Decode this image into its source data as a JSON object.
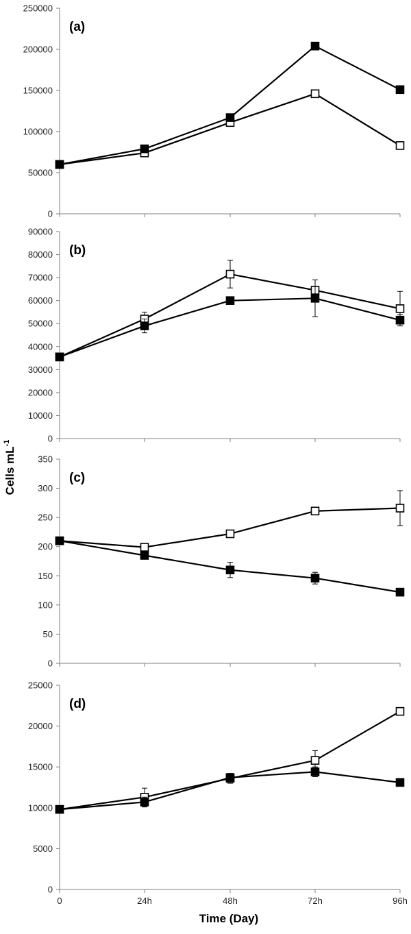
{
  "figure": {
    "ylabel_main": "Cells mL",
    "ylabel_sup": "-1",
    "xlabel": "Time (Day)",
    "x_ticks": [
      "0",
      "24h",
      "48h",
      "72h",
      "96h"
    ]
  },
  "chart_data": [
    {
      "type": "line",
      "panel_label": "(a)",
      "categories": [
        "0",
        "24h",
        "48h",
        "72h",
        "96h"
      ],
      "ylim": [
        0,
        250000
      ],
      "y_ticks": [
        "0",
        "50000",
        "100000",
        "150000",
        "200000",
        "250000"
      ],
      "series": [
        {
          "marker": "filled-square",
          "values": [
            60000,
            79000,
            117000,
            204000,
            151000
          ],
          "errors": [
            0,
            0,
            0,
            0,
            0
          ]
        },
        {
          "marker": "open-square",
          "values": [
            60000,
            74000,
            111000,
            146000,
            83000
          ],
          "errors": [
            0,
            0,
            0,
            0,
            0
          ]
        }
      ]
    },
    {
      "type": "line",
      "panel_label": "(b)",
      "categories": [
        "0",
        "24h",
        "48h",
        "72h",
        "96h"
      ],
      "ylim": [
        0,
        90000
      ],
      "y_ticks": [
        "0",
        "10000",
        "20000",
        "30000",
        "40000",
        "50000",
        "60000",
        "70000",
        "80000",
        "90000"
      ],
      "series": [
        {
          "marker": "filled-square",
          "values": [
            35500,
            49000,
            60000,
            61000,
            51500
          ],
          "errors": [
            0,
            3000,
            1500,
            8000,
            2500
          ]
        },
        {
          "marker": "open-square",
          "values": [
            35500,
            52000,
            71500,
            64500,
            56500
          ],
          "errors": [
            0,
            3000,
            6000,
            4500,
            7500
          ]
        }
      ]
    },
    {
      "type": "line",
      "panel_label": "(c)",
      "categories": [
        "0",
        "24h",
        "48h",
        "72h",
        "96h"
      ],
      "ylim": [
        0,
        350
      ],
      "y_ticks": [
        "0",
        "50",
        "100",
        "150",
        "200",
        "250",
        "300",
        "350"
      ],
      "series": [
        {
          "marker": "filled-square",
          "values": [
            210,
            185,
            160,
            146,
            122
          ],
          "errors": [
            0,
            5,
            13,
            10,
            3
          ]
        },
        {
          "marker": "open-square",
          "values": [
            210,
            199,
            222,
            261,
            266
          ],
          "errors": [
            0,
            3,
            5,
            4,
            30
          ]
        }
      ]
    },
    {
      "type": "line",
      "panel_label": "(d)",
      "categories": [
        "0",
        "24h",
        "48h",
        "72h",
        "96h"
      ],
      "ylim": [
        0,
        25000
      ],
      "y_ticks": [
        "0",
        "5000",
        "10000",
        "15000",
        "20000",
        "25000"
      ],
      "series": [
        {
          "marker": "filled-square",
          "values": [
            9800,
            10700,
            13700,
            14400,
            13100
          ],
          "errors": [
            0,
            600,
            500,
            600,
            200
          ]
        },
        {
          "marker": "open-square",
          "values": [
            9800,
            11300,
            13600,
            15800,
            21800
          ],
          "errors": [
            0,
            1100,
            600,
            1200,
            200
          ]
        }
      ]
    }
  ]
}
